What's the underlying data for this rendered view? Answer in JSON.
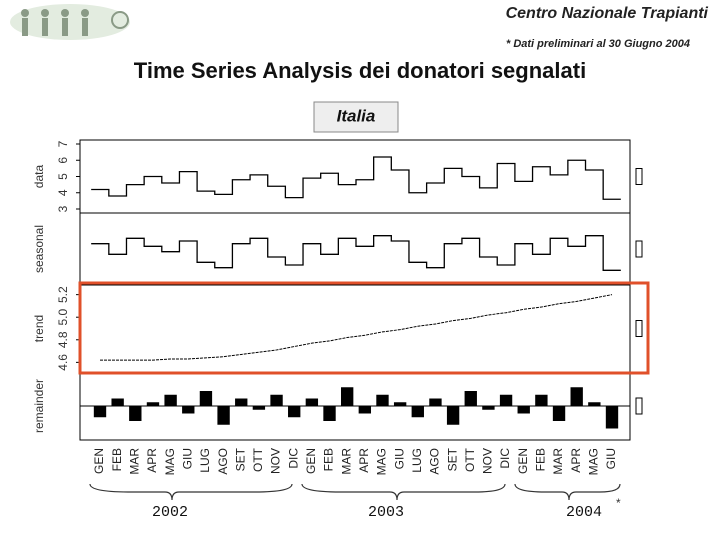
{
  "header": {
    "org": "Centro Nazionale Trapianti",
    "note": "* Dati preliminari al 30 Giugno 2004"
  },
  "title": "Time Series Analysis dei donatori segnalati",
  "subtitle": "Italia",
  "chart_data": {
    "type": "stl",
    "months": [
      "GEN",
      "FEB",
      "MAR",
      "APR",
      "MAG",
      "GIU",
      "LUG",
      "AGO",
      "SET",
      "OTT",
      "NOV",
      "DIC",
      "GEN",
      "FEB",
      "MAR",
      "APR",
      "MAG",
      "GIU",
      "LUG",
      "AGO",
      "SET",
      "OTT",
      "NOV",
      "DIC",
      "GEN",
      "FEB",
      "MAR",
      "APR",
      "MAG",
      "GIU"
    ],
    "years": [
      "2002",
      "2003",
      "2004"
    ],
    "footnote_mark": "*",
    "panels": [
      {
        "label": "data",
        "ylim": [
          3,
          7
        ],
        "yticks": [
          3,
          4,
          5,
          6,
          7
        ],
        "values": [
          4.2,
          3.8,
          4.5,
          5.0,
          4.6,
          5.3,
          4.1,
          3.9,
          4.8,
          5.1,
          4.4,
          3.7,
          4.9,
          5.2,
          4.5,
          4.8,
          6.2,
          5.4,
          4.0,
          4.6,
          5.5,
          5.0,
          4.3,
          5.8,
          4.7,
          5.6,
          5.1,
          6.0,
          5.4,
          3.6
        ]
      },
      {
        "label": "seasonal",
        "ylim": [
          -0.6,
          0.6
        ],
        "values": [
          0.1,
          -0.1,
          0.2,
          0.05,
          -0.05,
          0.15,
          -0.25,
          -0.35,
          0.1,
          0.2,
          -0.15,
          -0.3,
          0.1,
          -0.1,
          0.2,
          0.05,
          0.25,
          0.15,
          -0.25,
          -0.35,
          0.1,
          0.2,
          -0.15,
          -0.3,
          0.1,
          -0.1,
          0.2,
          0.05,
          0.25,
          -0.4
        ]
      },
      {
        "label": "trend",
        "ylim": [
          4.55,
          5.25
        ],
        "yticks": [
          4.6,
          4.8,
          {
            "value": 5,
            "label": "5.0"
          },
          5.2
        ],
        "values": [
          4.62,
          4.62,
          4.62,
          4.62,
          4.63,
          4.63,
          4.64,
          4.65,
          4.67,
          4.69,
          4.71,
          4.74,
          4.77,
          4.79,
          4.82,
          4.84,
          4.87,
          4.89,
          4.92,
          4.94,
          4.97,
          4.99,
          5.02,
          5.04,
          5.07,
          5.09,
          5.12,
          5.14,
          5.17,
          5.2
        ]
      },
      {
        "label": "remainder",
        "ylim": [
          -0.8,
          0.8
        ],
        "values": [
          -0.3,
          0.2,
          -0.4,
          0.1,
          0.3,
          -0.2,
          0.4,
          -0.5,
          0.2,
          -0.1,
          0.3,
          -0.3,
          0.2,
          -0.4,
          0.5,
          -0.2,
          0.3,
          0.1,
          -0.3,
          0.2,
          -0.5,
          0.4,
          -0.1,
          0.3,
          -0.2,
          0.3,
          -0.4,
          0.5,
          0.1,
          -0.6
        ]
      }
    ]
  }
}
